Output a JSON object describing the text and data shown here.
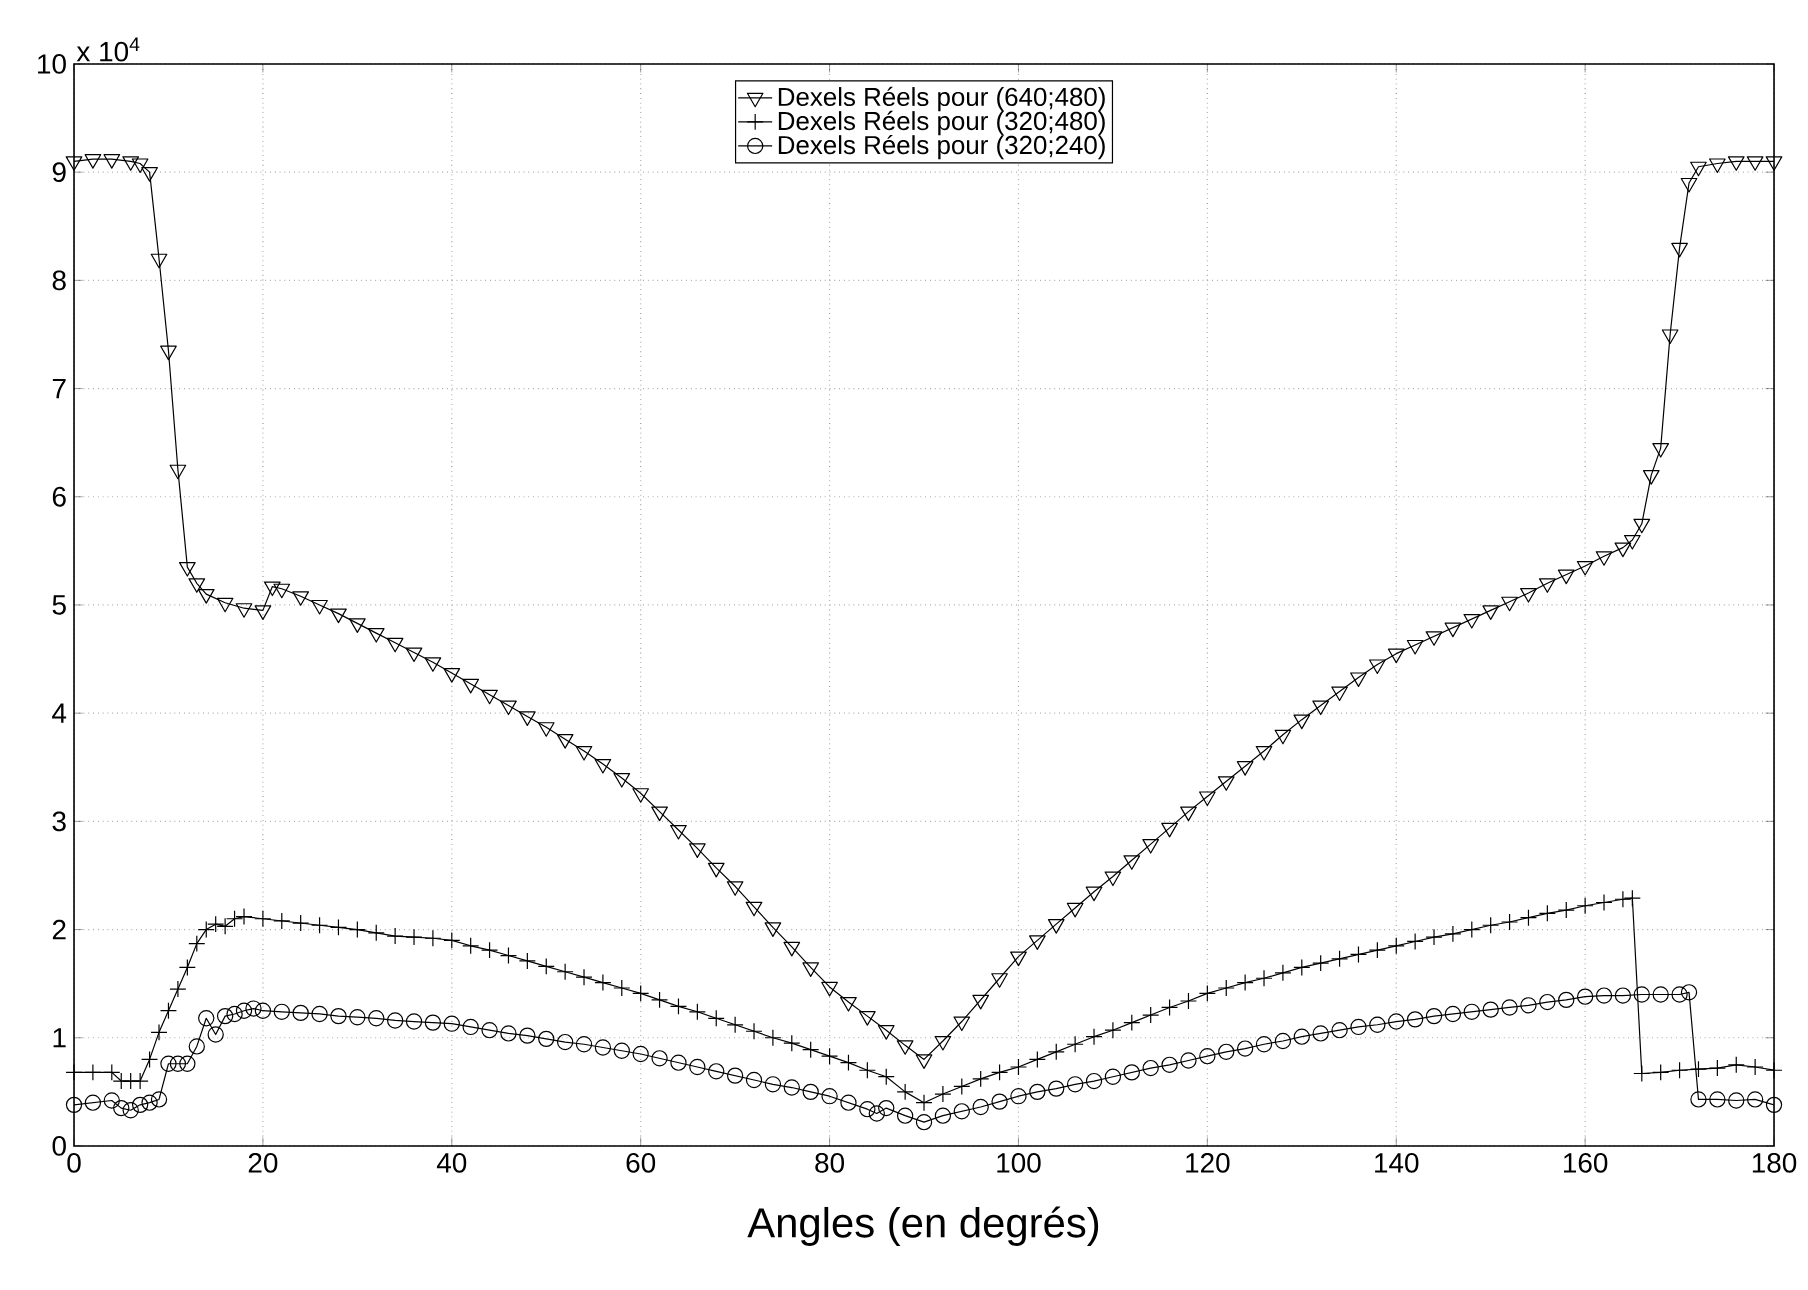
{
  "chart_data": {
    "type": "line",
    "xlabel": "Angles (en degrés)",
    "annotations": [
      "x 10$^{4}$"
    ],
    "xlim": [
      0,
      180
    ],
    "ylim": [
      0,
      10
    ],
    "xticks": [
      0,
      20,
      40,
      60,
      80,
      100,
      120,
      140,
      160,
      180
    ],
    "yticks": [
      0,
      1,
      2,
      3,
      4,
      5,
      6,
      7,
      8,
      9,
      10
    ],
    "grid": true,
    "legend": "top",
    "line_style": "solid",
    "series": [
      {
        "name": "Dexels Réels pour (640;480)",
        "color": "#000000",
        "marker": "triangle",
        "x": [
          0,
          2,
          4,
          6,
          7,
          8,
          9,
          10,
          11,
          12,
          13,
          14,
          16,
          18,
          20,
          21,
          22,
          24,
          26,
          28,
          30,
          32,
          34,
          36,
          38,
          40,
          42,
          44,
          46,
          48,
          50,
          52,
          54,
          56,
          58,
          60,
          62,
          64,
          66,
          68,
          70,
          72,
          74,
          76,
          78,
          80,
          82,
          84,
          86,
          88,
          90,
          92,
          94,
          96,
          98,
          100,
          102,
          104,
          106,
          108,
          110,
          112,
          114,
          116,
          118,
          120,
          122,
          124,
          126,
          128,
          130,
          132,
          134,
          136,
          138,
          140,
          142,
          144,
          146,
          148,
          150,
          152,
          154,
          156,
          158,
          160,
          162,
          164,
          165,
          166,
          167,
          168,
          169,
          170,
          171,
          172,
          174,
          176,
          178,
          180
        ],
        "values": [
          9.1,
          9.12,
          9.12,
          9.1,
          9.08,
          9.0,
          8.2,
          7.35,
          6.25,
          5.35,
          5.2,
          5.1,
          5.02,
          4.97,
          4.95,
          5.17,
          5.15,
          5.08,
          5.0,
          4.92,
          4.83,
          4.74,
          4.65,
          4.56,
          4.47,
          4.37,
          4.27,
          4.17,
          4.07,
          3.97,
          3.87,
          3.76,
          3.65,
          3.53,
          3.4,
          3.26,
          3.09,
          2.92,
          2.75,
          2.57,
          2.4,
          2.21,
          2.02,
          1.84,
          1.65,
          1.47,
          1.33,
          1.2,
          1.07,
          0.93,
          0.8,
          0.97,
          1.15,
          1.35,
          1.55,
          1.75,
          1.9,
          2.05,
          2.2,
          2.35,
          2.49,
          2.64,
          2.79,
          2.94,
          3.09,
          3.23,
          3.37,
          3.51,
          3.65,
          3.8,
          3.94,
          4.07,
          4.2,
          4.33,
          4.45,
          4.55,
          4.63,
          4.71,
          4.79,
          4.87,
          4.95,
          5.03,
          5.11,
          5.2,
          5.28,
          5.36,
          5.45,
          5.53,
          5.6,
          5.75,
          6.2,
          6.45,
          7.5,
          8.3,
          8.9,
          9.05,
          9.08,
          9.1,
          9.1,
          9.1
        ]
      },
      {
        "name": "Dexels Réels pour (320;480)",
        "color": "#000000",
        "marker": "cross",
        "x": [
          0,
          2,
          4,
          5,
          6,
          7,
          8,
          9,
          10,
          11,
          12,
          13,
          14,
          15,
          16,
          17,
          18,
          20,
          22,
          24,
          26,
          28,
          30,
          32,
          34,
          36,
          38,
          40,
          42,
          44,
          46,
          48,
          50,
          52,
          54,
          56,
          58,
          60,
          62,
          64,
          66,
          68,
          70,
          72,
          74,
          76,
          78,
          80,
          82,
          84,
          86,
          88,
          90,
          92,
          94,
          96,
          98,
          100,
          102,
          104,
          106,
          108,
          110,
          112,
          114,
          116,
          118,
          120,
          122,
          124,
          126,
          128,
          130,
          132,
          134,
          136,
          138,
          140,
          142,
          144,
          146,
          148,
          150,
          152,
          154,
          156,
          158,
          160,
          162,
          164,
          165,
          166,
          168,
          170,
          172,
          174,
          176,
          178,
          180
        ],
        "values": [
          0.68,
          0.68,
          0.68,
          0.6,
          0.6,
          0.6,
          0.8,
          1.05,
          1.25,
          1.45,
          1.65,
          1.87,
          2.0,
          2.05,
          2.03,
          2.1,
          2.12,
          2.1,
          2.08,
          2.06,
          2.04,
          2.02,
          2.0,
          1.97,
          1.94,
          1.93,
          1.92,
          1.9,
          1.85,
          1.81,
          1.76,
          1.71,
          1.66,
          1.61,
          1.56,
          1.51,
          1.46,
          1.41,
          1.35,
          1.29,
          1.24,
          1.18,
          1.12,
          1.06,
          1.0,
          0.95,
          0.89,
          0.83,
          0.77,
          0.7,
          0.64,
          0.5,
          0.4,
          0.48,
          0.55,
          0.62,
          0.68,
          0.73,
          0.8,
          0.87,
          0.94,
          1.01,
          1.07,
          1.14,
          1.21,
          1.28,
          1.34,
          1.41,
          1.46,
          1.51,
          1.55,
          1.6,
          1.65,
          1.69,
          1.73,
          1.77,
          1.81,
          1.85,
          1.89,
          1.93,
          1.96,
          2.0,
          2.04,
          2.07,
          2.11,
          2.15,
          2.18,
          2.22,
          2.25,
          2.28,
          2.29,
          0.67,
          0.68,
          0.7,
          0.71,
          0.72,
          0.75,
          0.73,
          0.7
        ]
      },
      {
        "name": "Dexels Réels pour (320;240)",
        "color": "#000000",
        "marker": "circle",
        "x": [
          0,
          2,
          4,
          5,
          6,
          7,
          8,
          9,
          10,
          11,
          12,
          13,
          14,
          15,
          16,
          17,
          18,
          19,
          20,
          22,
          24,
          26,
          28,
          30,
          32,
          34,
          36,
          38,
          40,
          42,
          44,
          46,
          48,
          50,
          52,
          54,
          56,
          58,
          60,
          62,
          64,
          66,
          68,
          70,
          72,
          74,
          76,
          78,
          80,
          82,
          84,
          85,
          86,
          88,
          90,
          92,
          94,
          96,
          98,
          100,
          102,
          104,
          106,
          108,
          110,
          112,
          114,
          116,
          118,
          120,
          122,
          124,
          126,
          128,
          130,
          132,
          134,
          136,
          138,
          140,
          142,
          144,
          146,
          148,
          150,
          152,
          154,
          156,
          158,
          160,
          162,
          164,
          166,
          168,
          170,
          171,
          172,
          174,
          176,
          178,
          180
        ],
        "values": [
          0.38,
          0.4,
          0.42,
          0.35,
          0.33,
          0.38,
          0.4,
          0.43,
          0.76,
          0.76,
          0.76,
          0.92,
          1.18,
          1.03,
          1.2,
          1.22,
          1.25,
          1.27,
          1.25,
          1.24,
          1.23,
          1.22,
          1.2,
          1.19,
          1.18,
          1.16,
          1.15,
          1.14,
          1.13,
          1.1,
          1.07,
          1.04,
          1.02,
          0.99,
          0.96,
          0.94,
          0.91,
          0.88,
          0.85,
          0.81,
          0.77,
          0.73,
          0.69,
          0.65,
          0.61,
          0.57,
          0.54,
          0.5,
          0.46,
          0.4,
          0.34,
          0.3,
          0.35,
          0.28,
          0.22,
          0.28,
          0.32,
          0.36,
          0.41,
          0.46,
          0.5,
          0.53,
          0.57,
          0.6,
          0.64,
          0.68,
          0.72,
          0.75,
          0.79,
          0.83,
          0.87,
          0.9,
          0.94,
          0.97,
          1.01,
          1.04,
          1.07,
          1.1,
          1.12,
          1.15,
          1.17,
          1.2,
          1.22,
          1.24,
          1.26,
          1.28,
          1.3,
          1.33,
          1.35,
          1.38,
          1.39,
          1.39,
          1.4,
          1.4,
          1.4,
          1.42,
          0.43,
          0.43,
          0.42,
          0.43,
          0.38
        ]
      }
    ]
  }
}
